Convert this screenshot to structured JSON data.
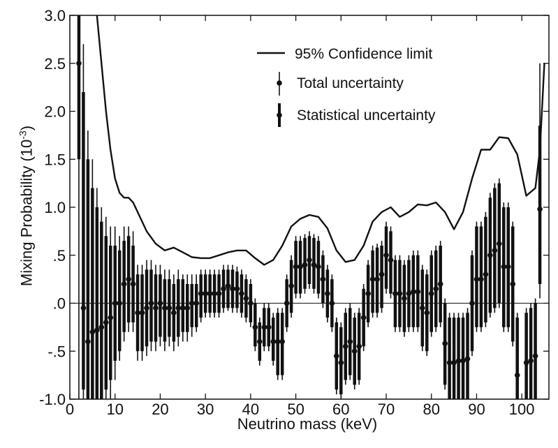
{
  "chart_data": {
    "type": "scatter",
    "xlabel": "Neutrino mass (keV)",
    "ylabel": "Mixing Probability",
    "ylabel_unit_base": "10",
    "ylabel_unit_exp": "-3",
    "xlim": [
      0,
      106
    ],
    "ylim": [
      -1.0,
      3.0
    ],
    "x_ticks": [
      0,
      10,
      20,
      30,
      40,
      50,
      60,
      70,
      80,
      90,
      100
    ],
    "x_tick_labels": [
      "0",
      "10",
      "20",
      "30",
      "40",
      "50",
      "60",
      "70",
      "80",
      "90",
      "100"
    ],
    "y_ticks": [
      -1.0,
      -0.5,
      0.0,
      0.5,
      1.0,
      1.5,
      2.0,
      2.5,
      3.0
    ],
    "y_tick_labels": [
      "-1.0",
      "-.5",
      ".0",
      ".5",
      "1.0",
      "1.5",
      "2.0",
      "2.5",
      "3.0"
    ],
    "grid": false,
    "zero_line": true,
    "legend_position": "top-right",
    "legend": [
      "95% Confidence limit",
      "Total uncertainty",
      "Statistical uncertainty"
    ],
    "confidence_limit": {
      "name": "95% Confidence limit",
      "x": [
        6,
        7,
        8,
        9,
        10,
        11,
        12,
        13,
        14,
        15,
        17,
        19,
        21,
        23,
        25,
        27,
        29,
        31,
        33,
        35,
        37,
        39,
        41,
        43,
        45,
        47,
        49,
        51,
        53,
        55,
        57,
        59,
        61,
        63,
        65,
        67,
        69,
        71,
        73,
        75,
        77,
        79,
        81,
        83,
        85,
        87,
        89,
        91,
        93,
        95,
        97,
        99,
        101,
        103,
        104,
        105
      ],
      "y": [
        3.0,
        2.5,
        2.0,
        1.6,
        1.3,
        1.15,
        1.1,
        1.1,
        1.05,
        0.95,
        0.75,
        0.62,
        0.55,
        0.58,
        0.53,
        0.48,
        0.47,
        0.47,
        0.5,
        0.53,
        0.55,
        0.55,
        0.47,
        0.4,
        0.45,
        0.6,
        0.8,
        0.88,
        0.92,
        0.9,
        0.78,
        0.55,
        0.43,
        0.45,
        0.6,
        0.85,
        0.95,
        1.0,
        0.9,
        0.95,
        1.03,
        1.02,
        1.05,
        0.95,
        0.77,
        0.95,
        1.3,
        1.6,
        1.6,
        1.73,
        1.72,
        1.55,
        1.12,
        1.2,
        1.6,
        2.5
      ]
    },
    "points": [
      {
        "x": 2.0,
        "y": 2.5,
        "lo": -1.0,
        "hi": 3.0,
        "slo": 1.5,
        "shi": 3.0
      },
      {
        "x": 3.0,
        "y": -0.05,
        "lo": -1.0,
        "hi": 2.7,
        "slo": -0.9,
        "shi": 2.2
      },
      {
        "x": 4.0,
        "y": -0.4,
        "lo": -1.0,
        "hi": 1.8,
        "slo": -1.0,
        "shi": 1.5
      },
      {
        "x": 5.0,
        "y": -0.3,
        "lo": -1.0,
        "hi": 1.5,
        "slo": -1.0,
        "shi": 1.2
      },
      {
        "x": 6.0,
        "y": -0.28,
        "lo": -1.0,
        "hi": 1.2,
        "slo": -1.0,
        "shi": 1.0
      },
      {
        "x": 7.0,
        "y": -0.25,
        "lo": -1.0,
        "hi": 1.0,
        "slo": -1.0,
        "shi": 0.85
      },
      {
        "x": 8.0,
        "y": -0.2,
        "lo": -1.0,
        "hi": 0.9,
        "slo": -0.9,
        "shi": 0.7
      },
      {
        "x": 9.0,
        "y": -0.15,
        "lo": -1.0,
        "hi": 0.8,
        "slo": -0.8,
        "shi": 0.6
      },
      {
        "x": 10.0,
        "y": 0.0,
        "lo": -0.8,
        "hi": 0.8,
        "slo": -0.6,
        "shi": 0.6
      },
      {
        "x": 11.0,
        "y": 0.0,
        "lo": -0.6,
        "hi": 0.7,
        "slo": -0.5,
        "shi": 0.55
      },
      {
        "x": 12.0,
        "y": 0.2,
        "lo": -0.4,
        "hi": 0.8,
        "slo": -0.3,
        "shi": 0.65
      },
      {
        "x": 13.0,
        "y": 0.25,
        "lo": -0.3,
        "hi": 0.8,
        "slo": -0.2,
        "shi": 0.7
      },
      {
        "x": 14.0,
        "y": 0.2,
        "lo": -0.3,
        "hi": 0.75,
        "slo": -0.2,
        "shi": 0.6
      },
      {
        "x": 15.0,
        "y": -0.1,
        "lo": -0.6,
        "hi": 0.4,
        "slo": -0.5,
        "shi": 0.3
      },
      {
        "x": 16.0,
        "y": -0.1,
        "lo": -0.6,
        "hi": 0.4,
        "slo": -0.5,
        "shi": 0.3
      },
      {
        "x": 17.0,
        "y": -0.05,
        "lo": -0.55,
        "hi": 0.45,
        "slo": -0.45,
        "shi": 0.35
      },
      {
        "x": 18.0,
        "y": 0.0,
        "lo": -0.5,
        "hi": 0.45,
        "slo": -0.4,
        "shi": 0.35
      },
      {
        "x": 19.0,
        "y": -0.05,
        "lo": -0.5,
        "hi": 0.4,
        "slo": -0.4,
        "shi": 0.3
      },
      {
        "x": 20.0,
        "y": 0.0,
        "lo": -0.45,
        "hi": 0.4,
        "slo": -0.35,
        "shi": 0.3
      },
      {
        "x": 21.0,
        "y": -0.05,
        "lo": -0.5,
        "hi": 0.35,
        "slo": -0.4,
        "shi": 0.25
      },
      {
        "x": 22.0,
        "y": -0.05,
        "lo": -0.45,
        "hi": 0.35,
        "slo": -0.35,
        "shi": 0.25
      },
      {
        "x": 23.0,
        "y": -0.1,
        "lo": -0.5,
        "hi": 0.3,
        "slo": -0.4,
        "shi": 0.2
      },
      {
        "x": 24.0,
        "y": -0.05,
        "lo": -0.45,
        "hi": 0.35,
        "slo": -0.35,
        "shi": 0.25
      },
      {
        "x": 25.0,
        "y": -0.05,
        "lo": -0.4,
        "hi": 0.3,
        "slo": -0.3,
        "shi": 0.25
      },
      {
        "x": 26.0,
        "y": -0.05,
        "lo": -0.4,
        "hi": 0.3,
        "slo": -0.3,
        "shi": 0.2
      },
      {
        "x": 27.0,
        "y": 0.0,
        "lo": -0.35,
        "hi": 0.3,
        "slo": -0.25,
        "shi": 0.2
      },
      {
        "x": 28.0,
        "y": 0.0,
        "lo": -0.3,
        "hi": 0.3,
        "slo": -0.25,
        "shi": 0.2
      },
      {
        "x": 29.0,
        "y": 0.1,
        "lo": -0.2,
        "hi": 0.35,
        "slo": -0.15,
        "shi": 0.3
      },
      {
        "x": 30.0,
        "y": 0.1,
        "lo": -0.15,
        "hi": 0.35,
        "slo": -0.1,
        "shi": 0.3
      },
      {
        "x": 31.0,
        "y": 0.1,
        "lo": -0.15,
        "hi": 0.35,
        "slo": -0.1,
        "shi": 0.3
      },
      {
        "x": 32.0,
        "y": 0.1,
        "lo": -0.15,
        "hi": 0.35,
        "slo": -0.1,
        "shi": 0.3
      },
      {
        "x": 33.0,
        "y": 0.1,
        "lo": -0.15,
        "hi": 0.35,
        "slo": -0.1,
        "shi": 0.3
      },
      {
        "x": 34.0,
        "y": 0.15,
        "lo": -0.1,
        "hi": 0.4,
        "slo": -0.05,
        "shi": 0.35
      },
      {
        "x": 35.0,
        "y": 0.18,
        "lo": -0.08,
        "hi": 0.4,
        "slo": -0.05,
        "shi": 0.35
      },
      {
        "x": 36.0,
        "y": 0.15,
        "lo": -0.1,
        "hi": 0.4,
        "slo": -0.05,
        "shi": 0.35
      },
      {
        "x": 37.0,
        "y": 0.15,
        "lo": -0.1,
        "hi": 0.38,
        "slo": -0.05,
        "shi": 0.33
      },
      {
        "x": 38.0,
        "y": 0.1,
        "lo": -0.15,
        "hi": 0.35,
        "slo": -0.1,
        "shi": 0.3
      },
      {
        "x": 39.0,
        "y": 0.05,
        "lo": -0.2,
        "hi": 0.3,
        "slo": -0.15,
        "shi": 0.25
      },
      {
        "x": 40.0,
        "y": 0.0,
        "lo": -0.25,
        "hi": 0.25,
        "slo": -0.2,
        "shi": 0.2
      },
      {
        "x": 41.0,
        "y": -0.25,
        "lo": -0.5,
        "hi": 0.05,
        "slo": -0.45,
        "shi": 0.0
      },
      {
        "x": 42.0,
        "y": -0.4,
        "lo": -0.65,
        "hi": -0.15,
        "slo": -0.6,
        "shi": -0.2
      },
      {
        "x": 43.0,
        "y": -0.25,
        "lo": -0.5,
        "hi": 0.0,
        "slo": -0.45,
        "shi": -0.05
      },
      {
        "x": 44.0,
        "y": -0.25,
        "lo": -0.5,
        "hi": 0.0,
        "slo": -0.45,
        "shi": -0.05
      },
      {
        "x": 45.0,
        "y": -0.4,
        "lo": -0.65,
        "hi": -0.1,
        "slo": -0.6,
        "shi": -0.15
      },
      {
        "x": 46.0,
        "y": -0.4,
        "lo": -0.8,
        "hi": -0.05,
        "slo": -0.75,
        "shi": -0.1
      },
      {
        "x": 47.0,
        "y": -0.4,
        "lo": -0.8,
        "hi": -0.05,
        "slo": -0.75,
        "shi": -0.1
      },
      {
        "x": 48.0,
        "y": 0.0,
        "lo": -0.3,
        "hi": 0.3,
        "slo": -0.25,
        "shi": 0.25
      },
      {
        "x": 49.0,
        "y": 0.18,
        "lo": -0.15,
        "hi": 0.5,
        "slo": -0.1,
        "shi": 0.45
      },
      {
        "x": 50.0,
        "y": 0.38,
        "lo": 0.05,
        "hi": 0.7,
        "slo": 0.1,
        "shi": 0.65
      },
      {
        "x": 51.0,
        "y": 0.38,
        "lo": 0.05,
        "hi": 0.7,
        "slo": 0.1,
        "shi": 0.65
      },
      {
        "x": 52.0,
        "y": 0.4,
        "lo": 0.1,
        "hi": 0.72,
        "slo": 0.15,
        "shi": 0.68
      },
      {
        "x": 53.0,
        "y": 0.45,
        "lo": 0.15,
        "hi": 0.75,
        "slo": 0.2,
        "shi": 0.7
      },
      {
        "x": 54.0,
        "y": 0.4,
        "lo": 0.1,
        "hi": 0.72,
        "slo": 0.15,
        "shi": 0.68
      },
      {
        "x": 55.0,
        "y": 0.38,
        "lo": 0.05,
        "hi": 0.7,
        "slo": 0.1,
        "shi": 0.65
      },
      {
        "x": 56.0,
        "y": 0.25,
        "lo": -0.05,
        "hi": 0.55,
        "slo": 0.0,
        "shi": 0.5
      },
      {
        "x": 57.0,
        "y": 0.1,
        "lo": -0.2,
        "hi": 0.4,
        "slo": -0.15,
        "shi": 0.35
      },
      {
        "x": 58.0,
        "y": 0.0,
        "lo": -0.3,
        "hi": 0.3,
        "slo": -0.25,
        "shi": 0.25
      },
      {
        "x": 59.0,
        "y": -0.55,
        "lo": -0.95,
        "hi": -0.15,
        "slo": -0.9,
        "shi": -0.2
      },
      {
        "x": 60.0,
        "y": -0.62,
        "lo": -1.0,
        "hi": -0.2,
        "slo": -0.95,
        "shi": -0.25
      },
      {
        "x": 61.0,
        "y": -0.45,
        "lo": -0.85,
        "hi": -0.05,
        "slo": -0.8,
        "shi": -0.1
      },
      {
        "x": 62.0,
        "y": -0.4,
        "lo": -0.8,
        "hi": 0.0,
        "slo": -0.75,
        "shi": -0.05
      },
      {
        "x": 63.0,
        "y": -0.5,
        "lo": -0.9,
        "hi": -0.1,
        "slo": -0.85,
        "shi": -0.15
      },
      {
        "x": 64.0,
        "y": -0.45,
        "lo": -0.85,
        "hi": -0.05,
        "slo": -0.8,
        "shi": -0.1
      },
      {
        "x": 65.0,
        "y": -0.15,
        "lo": -0.5,
        "hi": 0.2,
        "slo": -0.45,
        "shi": 0.15
      },
      {
        "x": 66.0,
        "y": 0.1,
        "lo": -0.25,
        "hi": 0.45,
        "slo": -0.2,
        "shi": 0.4
      },
      {
        "x": 67.0,
        "y": 0.25,
        "lo": -0.15,
        "hi": 0.6,
        "slo": -0.1,
        "shi": 0.55
      },
      {
        "x": 68.0,
        "y": 0.25,
        "lo": -0.15,
        "hi": 0.62,
        "slo": -0.1,
        "shi": 0.58
      },
      {
        "x": 69.0,
        "y": 0.3,
        "lo": -0.1,
        "hi": 0.65,
        "slo": -0.05,
        "shi": 0.6
      },
      {
        "x": 70.0,
        "y": 0.5,
        "lo": 0.1,
        "hi": 0.85,
        "slo": 0.15,
        "shi": 0.8
      },
      {
        "x": 71.0,
        "y": 0.45,
        "lo": 0.05,
        "hi": 0.8,
        "slo": 0.1,
        "shi": 0.75
      },
      {
        "x": 72.0,
        "y": 0.1,
        "lo": -0.3,
        "hi": 0.5,
        "slo": -0.25,
        "shi": 0.45
      },
      {
        "x": 73.0,
        "y": 0.1,
        "lo": -0.3,
        "hi": 0.5,
        "slo": -0.25,
        "shi": 0.45
      },
      {
        "x": 74.0,
        "y": 0.05,
        "lo": -0.35,
        "hi": 0.45,
        "slo": -0.3,
        "shi": 0.4
      },
      {
        "x": 75.0,
        "y": 0.1,
        "lo": -0.3,
        "hi": 0.5,
        "slo": -0.25,
        "shi": 0.45
      },
      {
        "x": 76.0,
        "y": 0.12,
        "lo": -0.3,
        "hi": 0.55,
        "slo": -0.25,
        "shi": 0.5
      },
      {
        "x": 77.0,
        "y": 0.12,
        "lo": -0.3,
        "hi": 0.55,
        "slo": -0.25,
        "shi": 0.5
      },
      {
        "x": 78.0,
        "y": -0.05,
        "lo": -0.5,
        "hi": 0.4,
        "slo": -0.45,
        "shi": 0.35
      },
      {
        "x": 79.0,
        "y": -0.1,
        "lo": -0.55,
        "hi": 0.35,
        "slo": -0.5,
        "shi": 0.3
      },
      {
        "x": 80.0,
        "y": 0.1,
        "lo": -0.35,
        "hi": 0.55,
        "slo": -0.3,
        "shi": 0.5
      },
      {
        "x": 81.0,
        "y": 0.15,
        "lo": -0.3,
        "hi": 0.6,
        "slo": -0.25,
        "shi": 0.55
      },
      {
        "x": 82.0,
        "y": 0.2,
        "lo": -0.25,
        "hi": 0.65,
        "slo": -0.2,
        "shi": 0.6
      },
      {
        "x": 83.0,
        "y": -0.42,
        "lo": -0.9,
        "hi": 0.05,
        "slo": -0.85,
        "shi": 0.0
      },
      {
        "x": 84.0,
        "y": -0.62,
        "lo": -1.0,
        "hi": -0.1,
        "slo": -1.0,
        "shi": -0.15
      },
      {
        "x": 85.0,
        "y": -0.62,
        "lo": -1.0,
        "hi": -0.1,
        "slo": -1.0,
        "shi": -0.15
      },
      {
        "x": 86.0,
        "y": -0.6,
        "lo": -1.0,
        "hi": -0.1,
        "slo": -1.0,
        "shi": -0.15
      },
      {
        "x": 87.0,
        "y": -0.6,
        "lo": -1.0,
        "hi": -0.1,
        "slo": -1.0,
        "shi": -0.15
      },
      {
        "x": 88.0,
        "y": -0.58,
        "lo": -1.0,
        "hi": -0.05,
        "slo": -1.0,
        "shi": -0.1
      },
      {
        "x": 89.0,
        "y": 0.0,
        "lo": -0.55,
        "hi": 0.55,
        "slo": -0.5,
        "shi": 0.5
      },
      {
        "x": 90.0,
        "y": 0.25,
        "lo": -0.3,
        "hi": 0.85,
        "slo": -0.25,
        "shi": 0.8
      },
      {
        "x": 91.0,
        "y": 0.25,
        "lo": -0.3,
        "hi": 0.85,
        "slo": -0.25,
        "shi": 0.8
      },
      {
        "x": 92.0,
        "y": 0.3,
        "lo": -0.25,
        "hi": 0.95,
        "slo": -0.2,
        "shi": 0.9
      },
      {
        "x": 93.0,
        "y": 0.5,
        "lo": -0.15,
        "hi": 1.15,
        "slo": -0.1,
        "shi": 1.1
      },
      {
        "x": 94.0,
        "y": 0.55,
        "lo": -0.1,
        "hi": 1.25,
        "slo": -0.05,
        "shi": 1.2
      },
      {
        "x": 95.0,
        "y": 0.62,
        "lo": -0.05,
        "hi": 1.3,
        "slo": 0.0,
        "shi": 1.25
      },
      {
        "x": 96.0,
        "y": 0.38,
        "lo": -0.3,
        "hi": 1.05,
        "slo": -0.25,
        "shi": 1.0
      },
      {
        "x": 97.0,
        "y": 0.38,
        "lo": -0.3,
        "hi": 1.05,
        "slo": -0.25,
        "shi": 1.0
      },
      {
        "x": 98.0,
        "y": 0.2,
        "lo": -0.45,
        "hi": 0.85,
        "slo": -0.4,
        "shi": 0.8
      },
      {
        "x": 99.0,
        "y": -0.75,
        "lo": -1.0,
        "hi": -0.1,
        "slo": -1.0,
        "shi": -0.15
      },
      {
        "x": 101.0,
        "y": -0.62,
        "lo": -1.0,
        "hi": -0.05,
        "slo": -1.0,
        "shi": -0.1
      },
      {
        "x": 102.0,
        "y": -0.6,
        "lo": -1.0,
        "hi": 0.0,
        "slo": -1.0,
        "shi": -0.05
      },
      {
        "x": 103.0,
        "y": -0.55,
        "lo": -1.0,
        "hi": 0.05,
        "slo": -1.0,
        "shi": 0.0
      },
      {
        "x": 104.0,
        "y": 0.98,
        "lo": 0.05,
        "hi": 2.5,
        "slo": 0.2,
        "shi": 1.85
      }
    ]
  }
}
